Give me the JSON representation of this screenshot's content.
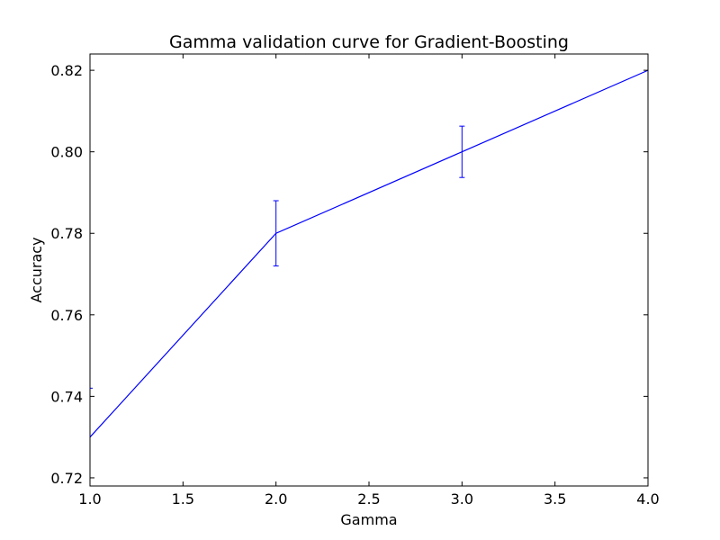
{
  "chart_data": {
    "type": "line",
    "title": "Gamma validation curve for Gradient-Boosting",
    "xlabel": "Gamma",
    "ylabel": "Accuracy",
    "xlim": [
      1.0,
      4.0
    ],
    "ylim": [
      0.718,
      0.824
    ],
    "x_ticks": [
      "1.0",
      "1.5",
      "2.0",
      "2.5",
      "3.0",
      "3.5",
      "4.0"
    ],
    "y_ticks": [
      "0.72",
      "0.74",
      "0.76",
      "0.78",
      "0.80",
      "0.82"
    ],
    "grid": false,
    "series": [
      {
        "color": "#0000ff",
        "x": [
          1.0,
          2.0,
          3.0,
          4.0
        ],
        "y": [
          0.73,
          0.78,
          0.8,
          0.82
        ],
        "error": [
          0.012,
          0.008,
          0.0063,
          0.0
        ]
      }
    ]
  }
}
